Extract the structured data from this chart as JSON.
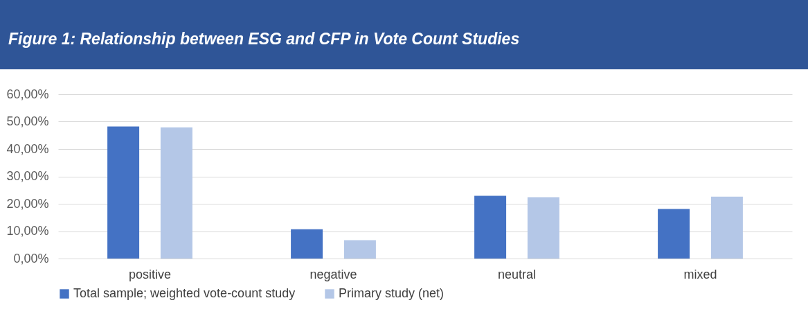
{
  "chart_data": {
    "type": "bar",
    "title": "Figure 1: Relationship between ESG and CFP in Vote Count Studies",
    "categories": [
      "positive",
      "negative",
      "neutral",
      "mixed"
    ],
    "series": [
      {
        "name": "Total sample; weighted vote-count study",
        "color": "#4472c4",
        "values": [
          48.2,
          10.7,
          22.9,
          18.1
        ]
      },
      {
        "name": "Primary study (net)",
        "color": "#b4c7e7",
        "values": [
          47.9,
          6.7,
          22.4,
          22.6
        ]
      }
    ],
    "ylim": [
      0,
      60
    ],
    "yticks": [
      {
        "value": 0,
        "label": "0,00%"
      },
      {
        "value": 10,
        "label": "10,00%"
      },
      {
        "value": 20,
        "label": "20,00%"
      },
      {
        "value": 30,
        "label": "30,00%"
      },
      {
        "value": 40,
        "label": "40,00%"
      },
      {
        "value": 50,
        "label": "50,00%"
      },
      {
        "value": 60,
        "label": "60,00%"
      }
    ],
    "grid": "y",
    "legend": "bottom"
  }
}
